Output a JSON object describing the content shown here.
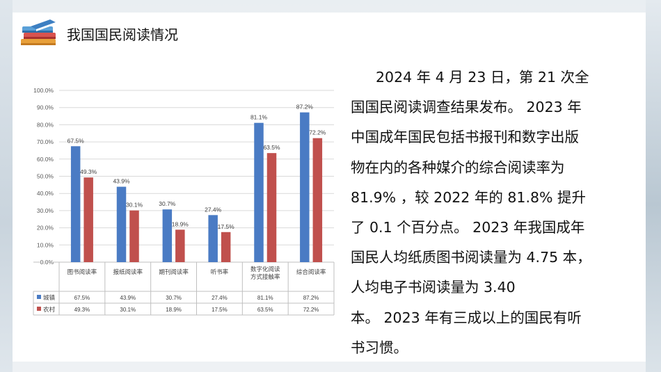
{
  "header": {
    "title": "我国国民阅读情况",
    "icon": "books-icon"
  },
  "chart_data": {
    "type": "bar",
    "categories": [
      "图书阅读率",
      "报纸阅读率",
      "期刊阅读率",
      "听书率",
      "数字化阅读方式接触率",
      "综合阅读率"
    ],
    "category_lines": [
      [
        "图书阅读率"
      ],
      [
        "报纸阅读率"
      ],
      [
        "期刊阅读率"
      ],
      [
        "听书率"
      ],
      [
        "数字化阅读",
        "方式接触率"
      ],
      [
        "综合阅读率"
      ]
    ],
    "series": [
      {
        "name": "城镇",
        "color": "#4a7bc4",
        "values": [
          67.5,
          43.9,
          30.7,
          27.4,
          81.1,
          87.2
        ],
        "labels": [
          "67.5%",
          "43.9%",
          "30.7%",
          "27.4%",
          "81.1%",
          "87.2%"
        ]
      },
      {
        "name": "农村",
        "color": "#c0504d",
        "values": [
          49.3,
          30.1,
          18.9,
          17.5,
          63.5,
          72.2
        ],
        "labels": [
          "49.3%",
          "30.1%",
          "18.9%",
          "17.5%",
          "63.5%",
          "72.2%"
        ]
      }
    ],
    "ylim": [
      0,
      100
    ],
    "yticks": [
      "0.0%",
      "10.0%",
      "20.0%",
      "30.0%",
      "40.0%",
      "50.0%",
      "60.0%",
      "70.0%",
      "80.0%",
      "90.0%",
      "100.0%"
    ],
    "grid": true,
    "legend": "data-table"
  },
  "paragraph": {
    "lines": [
      "2024 年 4 月 23 日，第 21 次全",
      "国国民阅读调查结果发布。 2023 年",
      "中国成年国民包括书报刊和数字出版",
      "物在内的各种媒介的综合阅读率为",
      "81.9% ，较 2022 年的 81.8% 提升",
      "了 0.1 个百分点。 2023 年我国成年",
      "国民人均纸质图书阅读量为 4.75 本，",
      "人均电子书阅读量为 3.40",
      "本。 2023 年有三成以上的国民有听",
      "书习惯。"
    ]
  }
}
